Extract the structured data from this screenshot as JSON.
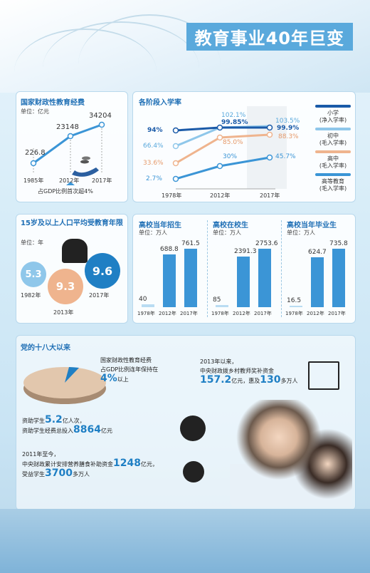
{
  "title": "教育事业40年巨变",
  "fund": {
    "title": "国家财政性教育经费",
    "unit": "单位：亿元",
    "values": [
      "226.8",
      "23148",
      "34204"
    ],
    "years": [
      "1985年",
      "2012年",
      "2017年"
    ],
    "note": "占GDP比例首次超4%"
  },
  "enroll": {
    "title": "各阶段入学率",
    "years": [
      "1978年",
      "2012年",
      "2017年"
    ],
    "legend": [
      {
        "label": "小学\n(净入学率)",
        "color": "#1a5aa8"
      },
      {
        "label": "初中\n(毛入学率)",
        "color": "#8fc7ea"
      },
      {
        "label": "高中\n(毛入学率)",
        "color": "#efb48e"
      },
      {
        "label": "高等教育\n(毛入学率)",
        "color": "#3b95d6"
      }
    ],
    "labels": {
      "primary": [
        "94%",
        "99.85%",
        "99.9%"
      ],
      "junior": [
        "66.4%",
        "102.1%",
        "103.5%"
      ],
      "senior": [
        "33.6%",
        "85.0%",
        "88.3%"
      ],
      "higher": [
        "2.7%",
        "30%",
        "45.7%"
      ]
    }
  },
  "years_edu": {
    "title": "15岁及以上人口平均受教育年限",
    "unit": "单位：年",
    "values": [
      "5.3",
      "9.3",
      "9.6"
    ],
    "years": [
      "1982年",
      "2013年",
      "2017年"
    ]
  },
  "college": [
    {
      "title": "高校当年招生",
      "unit": "单位：万人",
      "values": [
        "40",
        "688.8",
        "761.5"
      ]
    },
    {
      "title": "高校在校生",
      "unit": "单位：万人",
      "values": [
        "85",
        "2391.3",
        "2753.6"
      ]
    },
    {
      "title": "高校当年毕业生",
      "unit": "单位：万人",
      "values": [
        "16.5",
        "624.7",
        "735.8"
      ]
    }
  ],
  "college_years": [
    "1978年",
    "2012年",
    "2017年"
  ],
  "since18": {
    "title": "党的十八大以来",
    "pie_note1": "国家财政性教育经费",
    "pie_note2": "占GDP比例连年保持在",
    "pie_big": "4%",
    "pie_after": "以上",
    "teacher_l1": "2013年以来，",
    "teacher_l2": "中央财政拨乡村教师奖补资金",
    "teacher_big": "157.2",
    "teacher_mid": "亿元，惠及",
    "teacher_big2": "130",
    "teacher_end": "多万人",
    "aid_l1a": "资助学生",
    "aid_big1": "5.2",
    "aid_l1b": "亿人次，",
    "aid_l2a": "资助学生经费总投入",
    "aid_big2": "8864",
    "aid_l2b": "亿元",
    "meal_l1": "2011年至今，",
    "meal_l2a": "中央财政累计安排营养膳食补助资金",
    "meal_big1": "1248",
    "meal_l2b": "亿元，",
    "meal_l3a": "受益学生",
    "meal_big2": "3700",
    "meal_l3b": "多万人"
  },
  "chart_data": [
    {
      "type": "line",
      "title": "国家财政性教育经费",
      "x": [
        "1985年",
        "2012年",
        "2017年"
      ],
      "values": [
        226.8,
        23148,
        34204
      ],
      "unit": "亿元"
    },
    {
      "type": "line",
      "title": "各阶段入学率",
      "x": [
        "1978年",
        "2012年",
        "2017年"
      ],
      "series": [
        {
          "name": "小学(净入学率)",
          "values": [
            94,
            99.85,
            99.9
          ]
        },
        {
          "name": "初中(毛入学率)",
          "values": [
            66.4,
            102.1,
            103.5
          ]
        },
        {
          "name": "高中(毛入学率)",
          "values": [
            33.6,
            85.0,
            88.3
          ]
        },
        {
          "name": "高等教育(毛入学率)",
          "values": [
            2.7,
            30,
            45.7
          ]
        }
      ],
      "unit": "%"
    },
    {
      "type": "bar",
      "title": "高校当年招生",
      "categories": [
        "1978年",
        "2012年",
        "2017年"
      ],
      "values": [
        40,
        688.8,
        761.5
      ],
      "unit": "万人"
    },
    {
      "type": "bar",
      "title": "高校在校生",
      "categories": [
        "1978年",
        "2012年",
        "2017年"
      ],
      "values": [
        85,
        2391.3,
        2753.6
      ],
      "unit": "万人"
    },
    {
      "type": "bar",
      "title": "高校当年毕业生",
      "categories": [
        "1978年",
        "2012年",
        "2017年"
      ],
      "values": [
        16.5,
        624.7,
        735.8
      ],
      "unit": "万人"
    },
    {
      "type": "pie",
      "title": "国家财政性教育经费占GDP比例",
      "values": [
        4,
        96
      ],
      "unit": "%"
    }
  ]
}
